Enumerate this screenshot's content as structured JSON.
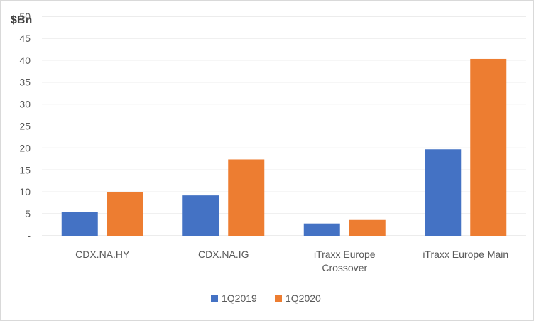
{
  "chart_data": {
    "type": "bar",
    "title": "",
    "unit_label": "$Bn",
    "xlabel": "",
    "ylabel": "",
    "categories": [
      [
        "CDX.NA.HY"
      ],
      [
        "CDX.NA.IG"
      ],
      [
        "iTraxx Europe",
        "Crossover"
      ],
      [
        "iTraxx Europe Main"
      ]
    ],
    "y_ticks": [
      "-",
      "5",
      "10",
      "15",
      "20",
      "25",
      "30",
      "35",
      "40",
      "45",
      "50"
    ],
    "ylim": [
      0,
      50
    ],
    "grid": true,
    "legend_position": "bottom",
    "series": [
      {
        "name": "1Q2019",
        "color": "#4472c4",
        "values": [
          5.5,
          9.2,
          2.8,
          19.7
        ]
      },
      {
        "name": "1Q2020",
        "color": "#ed7d31",
        "values": [
          10.0,
          17.4,
          3.6,
          40.3
        ]
      }
    ]
  }
}
